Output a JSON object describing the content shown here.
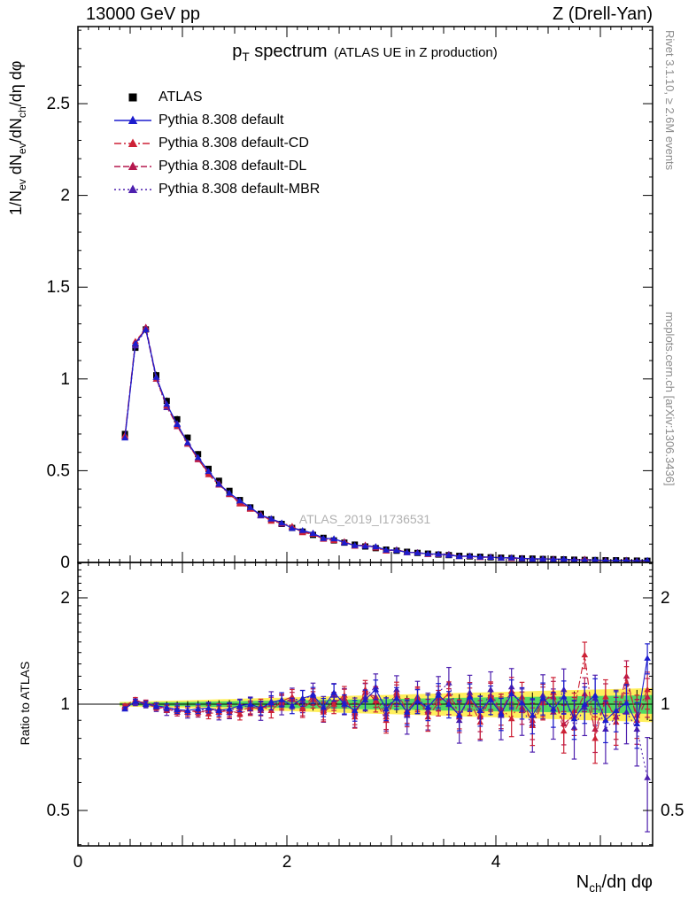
{
  "header": {
    "left": "13000 GeV pp",
    "right": "Z (Drell-Yan)"
  },
  "title": {
    "p": "p",
    "p_sub": "T",
    "p_rest": " spectrum",
    "note": "(ATLAS UE in Z production)"
  },
  "watermark": "ATLAS_2019_I1736531",
  "side_notes": {
    "top": "Rivet 3.1.10, ≥ 2.6M events",
    "bottom": "mcplots.cern.ch [arXiv:1306.3436]"
  },
  "colors": {
    "band_yellow": "#ffef5c",
    "band_green": "#52d862",
    "frame": "#000000",
    "ref_line": "#000000",
    "watermark_gray": "#b0b0b0",
    "side_gray": "#8c8c8c"
  },
  "axes": {
    "main_y": {
      "label_segments": [
        {
          "text": "1/N"
        },
        {
          "sub": "ev"
        },
        {
          "text": " dN"
        },
        {
          "sub": "ev"
        },
        {
          "text": "/dN"
        },
        {
          "sub": "ch"
        },
        {
          "text": "/dη dφ"
        }
      ],
      "ticks": [
        0,
        0.5,
        1,
        1.5,
        2,
        2.5
      ],
      "tick_labels": [
        "0",
        "0.5",
        "1",
        "1.5",
        "2",
        "2.5"
      ],
      "range": [
        0,
        2.92
      ]
    },
    "ratio_y": {
      "label": "Ratio to ATLAS",
      "ticks": [
        0.5,
        1,
        2
      ],
      "tick_labels": [
        "0.5",
        "1",
        "2"
      ],
      "range": [
        0.4,
        2.5
      ],
      "scale": "log"
    },
    "x": {
      "label_segments": [
        {
          "text": "N"
        },
        {
          "sub": "ch"
        },
        {
          "text": "/dη dφ"
        }
      ],
      "ticks": [
        0,
        2,
        4
      ],
      "tick_labels": [
        "0",
        "2",
        "4"
      ],
      "range": [
        0,
        5.5
      ]
    }
  },
  "legend": [
    {
      "label": "ATLAS",
      "marker": "square",
      "color": "#000000",
      "line": false,
      "dash": ""
    },
    {
      "label": "Pythia 8.308 default",
      "marker": "triangle",
      "color": "#1c1ccd",
      "line": true,
      "dash": ""
    },
    {
      "label": "Pythia 8.308 default-CD",
      "marker": "triangle",
      "color": "#cd2136",
      "line": true,
      "dash": "8 3 2 3"
    },
    {
      "label": "Pythia 8.308 default-DL",
      "marker": "triangle",
      "color": "#b5184f",
      "line": true,
      "dash": "7 3"
    },
    {
      "label": "Pythia 8.308 default-MBR",
      "marker": "triangle",
      "color": "#4d1fae",
      "line": true,
      "dash": "2 3"
    }
  ],
  "chart_data": {
    "type": "line",
    "title": "pT spectrum (ATLAS UE in Z production)",
    "xlabel": "N_ch/dη dφ",
    "ylabel": "1/N_ev dN_ev/dN_ch/dη dφ",
    "ratio_ylabel": "Ratio to ATLAS",
    "xlim": [
      0,
      5.5
    ],
    "main_ylim": [
      0,
      2.92
    ],
    "ratio_ylim": [
      0.4,
      2.5
    ],
    "ratio_scale": "log",
    "bin_width": 0.1,
    "x": [
      0.45,
      0.55,
      0.65,
      0.75,
      0.85,
      0.95,
      1.05,
      1.15,
      1.25,
      1.35,
      1.45,
      1.55,
      1.65,
      1.75,
      1.85,
      1.95,
      2.05,
      2.15,
      2.25,
      2.35,
      2.45,
      2.55,
      2.65,
      2.75,
      2.85,
      2.95,
      3.05,
      3.15,
      3.25,
      3.35,
      3.45,
      3.55,
      3.65,
      3.75,
      3.85,
      3.95,
      4.05,
      4.15,
      4.25,
      4.35,
      4.45,
      4.55,
      4.65,
      4.75,
      4.85,
      4.95,
      5.05,
      5.15,
      5.25,
      5.35,
      5.45
    ],
    "reference": {
      "name": "ATLAS",
      "color": "#000000",
      "values": [
        0.7,
        1.17,
        1.27,
        1.02,
        0.88,
        0.78,
        0.68,
        0.59,
        0.51,
        0.445,
        0.39,
        0.34,
        0.3,
        0.265,
        0.235,
        0.21,
        0.188,
        0.168,
        0.15,
        0.134,
        0.12,
        0.108,
        0.097,
        0.087,
        0.078,
        0.07,
        0.064,
        0.058,
        0.052,
        0.048,
        0.043,
        0.04,
        0.036,
        0.033,
        0.031,
        0.028,
        0.026,
        0.024,
        0.022,
        0.021,
        0.019,
        0.018,
        0.017,
        0.015,
        0.014,
        0.013,
        0.012,
        0.012,
        0.011,
        0.01,
        0.009
      ]
    },
    "err": [
      0.012,
      0.014,
      0.017,
      0.019,
      0.022,
      0.024,
      0.026,
      0.029,
      0.031,
      0.034,
      0.036,
      0.038,
      0.041,
      0.043,
      0.046,
      0.048,
      0.05,
      0.053,
      0.055,
      0.058,
      0.06,
      0.062,
      0.065,
      0.067,
      0.07,
      0.072,
      0.074,
      0.077,
      0.079,
      0.082,
      0.084,
      0.086,
      0.089,
      0.091,
      0.094,
      0.096,
      0.098,
      0.101,
      0.103,
      0.106,
      0.108,
      0.11,
      0.113,
      0.115,
      0.118,
      0.12,
      0.122,
      0.125,
      0.127,
      0.13,
      0.132
    ],
    "band_yellow": [
      0.015,
      0.017,
      0.019,
      0.021,
      0.023,
      0.024,
      0.026,
      0.028,
      0.03,
      0.032,
      0.034,
      0.036,
      0.038,
      0.04,
      0.042,
      0.043,
      0.045,
      0.047,
      0.049,
      0.051,
      0.053,
      0.055,
      0.057,
      0.059,
      0.061,
      0.062,
      0.064,
      0.066,
      0.068,
      0.07,
      0.072,
      0.074,
      0.076,
      0.078,
      0.08,
      0.081,
      0.083,
      0.085,
      0.087,
      0.089,
      0.091,
      0.093,
      0.095,
      0.097,
      0.099,
      0.1,
      0.102,
      0.104,
      0.106,
      0.108,
      0.11
    ],
    "band_green": [
      0.008,
      0.009,
      0.01,
      0.012,
      0.013,
      0.013,
      0.014,
      0.015,
      0.017,
      0.018,
      0.019,
      0.02,
      0.021,
      0.022,
      0.023,
      0.024,
      0.025,
      0.026,
      0.027,
      0.028,
      0.029,
      0.03,
      0.031,
      0.032,
      0.034,
      0.034,
      0.035,
      0.036,
      0.037,
      0.039,
      0.04,
      0.041,
      0.042,
      0.043,
      0.044,
      0.045,
      0.046,
      0.047,
      0.048,
      0.049,
      0.05,
      0.051,
      0.052,
      0.053,
      0.054,
      0.055,
      0.056,
      0.057,
      0.058,
      0.059,
      0.061
    ],
    "series": [
      {
        "name": "Pythia 8.308 default",
        "color": "#1c1ccd",
        "dash": "",
        "err_scale": 1.0,
        "ratio": [
          0.97,
          1.02,
          1.0,
          0.99,
          0.98,
          0.965,
          0.96,
          0.97,
          0.975,
          0.96,
          0.97,
          0.99,
          1.0,
          0.975,
          1.01,
          1.03,
          0.99,
          1.04,
          1.06,
          0.98,
          1.08,
          1.0,
          0.96,
          1.03,
          1.1,
          0.97,
          1.04,
          0.95,
          1.02,
          0.98,
          1.06,
          1.0,
          0.93,
          1.05,
          0.96,
          1.03,
          0.94,
          1.07,
          1.01,
          0.93,
          1.04,
          0.97,
          1.05,
          0.91,
          1.0,
          1.06,
          0.9,
          0.96,
          1.01,
          0.88,
          1.35
        ]
      },
      {
        "name": "Pythia 8.308 default-CD",
        "color": "#cd2136",
        "dash": "8 3 2 3",
        "err_scale": 1.0,
        "ratio": [
          0.99,
          1.03,
          1.0,
          0.98,
          0.97,
          0.96,
          0.95,
          0.96,
          0.94,
          0.95,
          0.96,
          0.94,
          0.97,
          0.99,
          0.96,
          1.02,
          1.05,
          0.97,
          1.03,
          0.95,
          1.0,
          1.06,
          0.92,
          1.1,
          1.02,
          0.9,
          1.08,
          0.96,
          1.04,
          0.92,
          1.01,
          1.07,
          0.94,
          1.02,
          0.89,
          1.06,
          0.97,
          0.91,
          1.05,
          0.87,
          1.01,
          1.08,
          0.84,
          0.96,
          1.38,
          0.8,
          1.05,
          0.89,
          1.15,
          0.93,
          1.1
        ]
      },
      {
        "name": "Pythia 8.308 default-DL",
        "color": "#b5184f",
        "dash": "7 3",
        "err_scale": 1.0,
        "ratio": [
          0.98,
          1.02,
          1.01,
          0.99,
          0.97,
          0.95,
          0.96,
          0.95,
          0.96,
          0.97,
          0.95,
          0.96,
          0.98,
          0.97,
          1.0,
          1.01,
          1.03,
          0.98,
          1.05,
          0.96,
          1.02,
          1.04,
          0.94,
          1.08,
          1.05,
          0.92,
          1.06,
          0.94,
          1.03,
          0.95,
          1.04,
          1.02,
          0.92,
          1.06,
          0.93,
          1.05,
          0.95,
          1.09,
          0.98,
          0.9,
          1.03,
          1.05,
          0.88,
          0.93,
          1.07,
          0.85,
          1.02,
          0.92,
          1.2,
          0.9,
          1.05
        ]
      },
      {
        "name": "Pythia 8.308 default-MBR",
        "color": "#4d1fae",
        "dash": "2 3",
        "err_scale": 1.4,
        "ratio": [
          0.98,
          1.01,
          1.0,
          0.98,
          0.96,
          0.97,
          0.95,
          0.96,
          0.97,
          0.95,
          0.96,
          0.98,
          0.99,
          0.96,
          1.02,
          1.0,
          1.04,
          1.02,
          1.07,
          0.97,
          1.06,
          1.02,
          0.95,
          1.05,
          1.12,
          0.94,
          1.1,
          0.93,
          1.05,
          0.96,
          1.08,
          1.15,
          0.9,
          1.08,
          0.92,
          1.1,
          0.93,
          1.12,
          0.96,
          0.88,
          1.06,
          0.95,
          1.1,
          0.86,
          0.98,
          1.04,
          0.85,
          0.92,
          0.95,
          0.85,
          0.62
        ]
      }
    ]
  }
}
